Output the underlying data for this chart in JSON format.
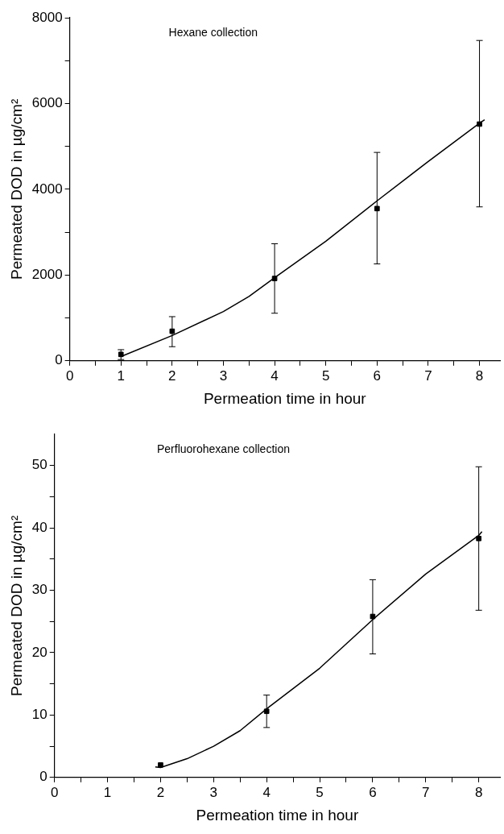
{
  "chart_data": [
    {
      "type": "scatter",
      "annotations": [
        "Hexane collection"
      ],
      "xlabel": "Permeation time in hour",
      "ylabel": "Permeated DOD in µg/cm²",
      "xlim": [
        0,
        8.4
      ],
      "xticks": [
        0,
        {
          "value": 0.5,
          "label": null
        },
        1,
        {
          "value": 1.5,
          "label": null
        },
        2,
        {
          "value": 2.5,
          "label": null
        },
        3,
        {
          "value": 3.5,
          "label": null
        },
        4,
        {
          "value": 4.5,
          "label": null
        },
        5,
        {
          "value": 5.5,
          "label": null
        },
        6,
        {
          "value": 6.5,
          "label": null
        },
        7,
        {
          "value": 7.5,
          "label": null
        },
        8
      ],
      "ylim": [
        0,
        8000
      ],
      "yticks": [
        0,
        {
          "value": 1000,
          "label": null
        },
        2000,
        {
          "value": 3000,
          "label": null
        },
        4000,
        {
          "value": 5000,
          "label": null
        },
        6000,
        {
          "value": 7000,
          "label": null
        },
        8000
      ],
      "grid": false,
      "legend": false,
      "series": [
        {
          "type": "scatter",
          "marker": "square",
          "color": "#000000",
          "x": [
            1,
            2,
            4,
            6,
            8
          ],
          "values": [
            150,
            690,
            1920,
            3550,
            5520
          ],
          "errors": [
            [
              30,
              260
            ],
            [
              330,
              1030
            ],
            [
              1110,
              2730
            ],
            [
              2260,
              4860
            ],
            [
              3590,
              7470
            ]
          ]
        },
        {
          "type": "line",
          "marker": "none",
          "color": "#000000",
          "x": [
            1,
            2,
            3,
            3.5,
            4,
            5,
            6,
            7,
            8,
            8.1
          ],
          "values": [
            100,
            590,
            1150,
            1500,
            1940,
            2790,
            3730,
            4650,
            5540,
            5620
          ]
        }
      ]
    },
    {
      "type": "scatter",
      "annotations": [
        "Perfluorohexane collection"
      ],
      "xlabel": "Permeation time in hour",
      "ylabel": "Permeated DOD in µg/cm²",
      "xlim": [
        0,
        8.4
      ],
      "xticks": [
        0,
        {
          "value": 0.5,
          "label": null
        },
        1,
        {
          "value": 1.5,
          "label": null
        },
        2,
        {
          "value": 2.5,
          "label": null
        },
        3,
        {
          "value": 3.5,
          "label": null
        },
        4,
        {
          "value": 4.5,
          "label": null
        },
        5,
        {
          "value": 5.5,
          "label": null
        },
        6,
        {
          "value": 6.5,
          "label": null
        },
        7,
        {
          "value": 7.5,
          "label": null
        },
        8
      ],
      "ylim": [
        0,
        55
      ],
      "yticks": [
        0,
        {
          "value": 5,
          "label": null
        },
        10,
        {
          "value": 15,
          "label": null
        },
        20,
        {
          "value": 25,
          "label": null
        },
        30,
        {
          "value": 35,
          "label": null
        },
        40,
        {
          "value": 45,
          "label": null
        },
        50
      ],
      "grid": false,
      "legend": false,
      "series": [
        {
          "type": "scatter",
          "marker": "square",
          "color": "#000000",
          "x": [
            2,
            4,
            6,
            8
          ],
          "values": [
            2.0,
            10.6,
            25.8,
            38.3
          ],
          "errors": [
            null,
            [
              8.0,
              13.2
            ],
            [
              19.8,
              31.7
            ],
            [
              26.8,
              49.8
            ]
          ]
        },
        {
          "type": "line",
          "marker": "none",
          "color": "#000000",
          "x": [
            1.9,
            2,
            2.5,
            3,
            3.5,
            4,
            5,
            6,
            7,
            8,
            8.06
          ],
          "values": [
            1.7,
            1.6,
            3.0,
            5.0,
            7.5,
            11.0,
            17.5,
            25.3,
            32.6,
            38.8,
            39.4
          ]
        }
      ]
    }
  ]
}
